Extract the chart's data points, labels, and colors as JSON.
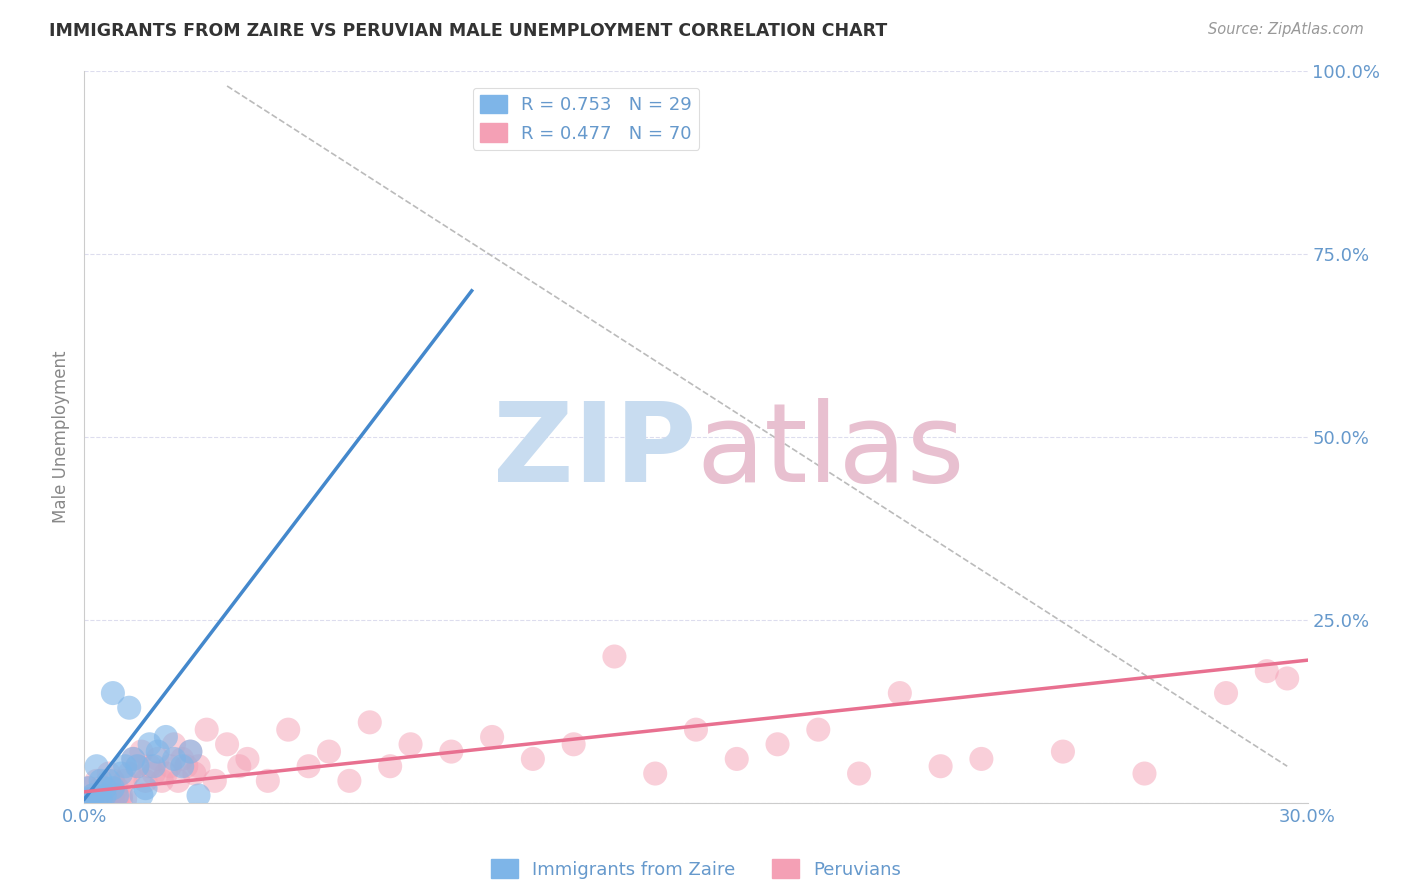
{
  "title": "IMMIGRANTS FROM ZAIRE VS PERUVIAN MALE UNEMPLOYMENT CORRELATION CHART",
  "source": "Source: ZipAtlas.com",
  "ylabel": "Male Unemployment",
  "xlim": [
    0.0,
    0.3
  ],
  "ylim": [
    0.0,
    1.0
  ],
  "xtick_positions": [
    0.0,
    0.05,
    0.1,
    0.15,
    0.2,
    0.25,
    0.3
  ],
  "xtick_labels": [
    "0.0%",
    "",
    "",
    "",
    "",
    "",
    "30.0%"
  ],
  "ytick_positions": [
    0.0,
    0.25,
    0.5,
    0.75,
    1.0
  ],
  "ytick_labels": [
    "",
    "25.0%",
    "50.0%",
    "75.0%",
    "100.0%"
  ],
  "legend1_label": "R = 0.753   N = 29",
  "legend2_label": "R = 0.477   N = 70",
  "legend_color1": "#7eb5e8",
  "legend_color2": "#f4a0b5",
  "series1_color": "#7eb5e8",
  "series2_color": "#f4a0b5",
  "line1_color": "#4488cc",
  "line2_color": "#e87090",
  "watermark_color1": "#c8dcf0",
  "watermark_color2": "#e8c0d0",
  "title_color": "#333333",
  "tick_color": "#6699cc",
  "background_color": "#ffffff",
  "series1_x": [
    0.001,
    0.001,
    0.002,
    0.002,
    0.003,
    0.003,
    0.004,
    0.004,
    0.005,
    0.005,
    0.006,
    0.007,
    0.007,
    0.008,
    0.009,
    0.01,
    0.011,
    0.012,
    0.013,
    0.014,
    0.015,
    0.016,
    0.017,
    0.018,
    0.02,
    0.022,
    0.024,
    0.026,
    0.028
  ],
  "series1_y": [
    0.02,
    0.005,
    0.01,
    0.005,
    0.05,
    0.005,
    0.03,
    0.005,
    0.02,
    0.01,
    0.03,
    0.15,
    0.02,
    0.01,
    0.04,
    0.05,
    0.13,
    0.06,
    0.05,
    0.01,
    0.02,
    0.08,
    0.05,
    0.07,
    0.09,
    0.06,
    0.05,
    0.07,
    0.01
  ],
  "series2_x": [
    0.001,
    0.001,
    0.002,
    0.002,
    0.003,
    0.003,
    0.004,
    0.004,
    0.005,
    0.005,
    0.006,
    0.006,
    0.007,
    0.007,
    0.008,
    0.008,
    0.009,
    0.009,
    0.01,
    0.01,
    0.011,
    0.012,
    0.013,
    0.014,
    0.015,
    0.016,
    0.017,
    0.018,
    0.019,
    0.02,
    0.021,
    0.022,
    0.023,
    0.024,
    0.025,
    0.026,
    0.027,
    0.028,
    0.03,
    0.032,
    0.035,
    0.038,
    0.04,
    0.045,
    0.05,
    0.055,
    0.06,
    0.065,
    0.07,
    0.075,
    0.08,
    0.09,
    0.1,
    0.11,
    0.12,
    0.13,
    0.14,
    0.15,
    0.16,
    0.17,
    0.18,
    0.19,
    0.2,
    0.21,
    0.22,
    0.24,
    0.26,
    0.28,
    0.29,
    0.295
  ],
  "series2_y": [
    0.02,
    0.005,
    0.01,
    0.005,
    0.03,
    0.005,
    0.02,
    0.005,
    0.01,
    0.005,
    0.04,
    0.005,
    0.03,
    0.005,
    0.02,
    0.005,
    0.01,
    0.005,
    0.03,
    0.005,
    0.04,
    0.06,
    0.05,
    0.07,
    0.03,
    0.05,
    0.04,
    0.06,
    0.03,
    0.04,
    0.05,
    0.08,
    0.03,
    0.06,
    0.05,
    0.07,
    0.04,
    0.05,
    0.1,
    0.03,
    0.08,
    0.05,
    0.06,
    0.03,
    0.1,
    0.05,
    0.07,
    0.03,
    0.11,
    0.05,
    0.08,
    0.07,
    0.09,
    0.06,
    0.08,
    0.2,
    0.04,
    0.1,
    0.06,
    0.08,
    0.1,
    0.04,
    0.15,
    0.05,
    0.06,
    0.07,
    0.04,
    0.15,
    0.18,
    0.17
  ],
  "line1_x": [
    0.0,
    0.095
  ],
  "line1_y": [
    0.005,
    0.7
  ],
  "line2_x": [
    0.0,
    0.3
  ],
  "line2_y": [
    0.015,
    0.195
  ],
  "ref_line_x": [
    0.035,
    0.295
  ],
  "ref_line_y": [
    0.98,
    0.05
  ]
}
